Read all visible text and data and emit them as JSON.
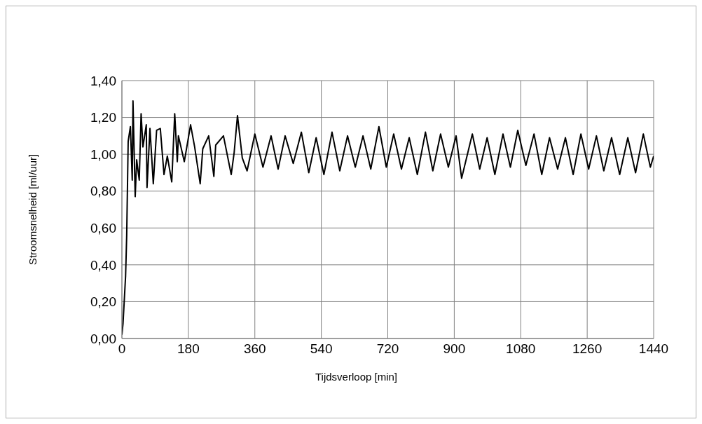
{
  "chart_data": {
    "type": "line",
    "xlabel": "Tijdsverloop [min]",
    "ylabel": "Stroomsnelheid [ml/uur]",
    "x": [
      0,
      3,
      10,
      13,
      17,
      23,
      28,
      30,
      36,
      40,
      47,
      52,
      57,
      66,
      68,
      76,
      85,
      94,
      104,
      114,
      123,
      135,
      143,
      150,
      153,
      169,
      186,
      197,
      212,
      219,
      235,
      249,
      254,
      275,
      296,
      304,
      313,
      326,
      339,
      360,
      382,
      404,
      423,
      442,
      464,
      486,
      506,
      526,
      547,
      569,
      590,
      611,
      632,
      653,
      674,
      696,
      716,
      736,
      757,
      778,
      800,
      822,
      842,
      863,
      884,
      905,
      920,
      949,
      969,
      989,
      1010,
      1032,
      1052,
      1072,
      1094,
      1116,
      1137,
      1158,
      1180,
      1201,
      1222,
      1243,
      1264,
      1285,
      1305,
      1326,
      1348,
      1370,
      1391,
      1412,
      1431,
      1440
    ],
    "series": [
      {
        "color": "#000000",
        "values": [
          0.02,
          0.08,
          0.34,
          0.56,
          1.07,
          1.15,
          0.86,
          1.29,
          0.77,
          0.97,
          0.86,
          1.22,
          1.04,
          1.16,
          0.82,
          1.14,
          0.84,
          1.13,
          1.14,
          0.89,
          0.99,
          0.85,
          1.22,
          0.96,
          1.1,
          0.96,
          1.16,
          1.04,
          0.84,
          1.03,
          1.1,
          0.88,
          1.05,
          1.1,
          0.89,
          1.01,
          1.21,
          0.98,
          0.91,
          1.11,
          0.93,
          1.1,
          0.92,
          1.1,
          0.95,
          1.12,
          0.9,
          1.09,
          0.89,
          1.12,
          0.91,
          1.1,
          0.93,
          1.1,
          0.92,
          1.15,
          0.93,
          1.11,
          0.92,
          1.09,
          0.89,
          1.12,
          0.91,
          1.11,
          0.93,
          1.1,
          0.87,
          1.11,
          0.92,
          1.09,
          0.89,
          1.11,
          0.93,
          1.13,
          0.94,
          1.11,
          0.89,
          1.09,
          0.92,
          1.09,
          0.89,
          1.11,
          0.92,
          1.1,
          0.91,
          1.09,
          0.89,
          1.09,
          0.9,
          1.11,
          0.93,
          0.99
        ]
      }
    ],
    "xlim": [
      0,
      1440
    ],
    "xticks": [
      0,
      180,
      360,
      540,
      720,
      900,
      1080,
      1260,
      1440
    ],
    "ylim": [
      0,
      1.4
    ],
    "yticks": [
      {
        "value": 0,
        "label": "0,00"
      },
      {
        "value": 0.2,
        "label": "0,20"
      },
      {
        "value": 0.4,
        "label": "0,40"
      },
      {
        "value": 0.6,
        "label": "0,60"
      },
      {
        "value": 0.8,
        "label": "0,80"
      },
      {
        "value": 1,
        "label": "1,00"
      },
      {
        "value": 1.2,
        "label": "1,20"
      },
      {
        "value": 1.4,
        "label": "1,40"
      }
    ],
    "grid": true,
    "marker": "none",
    "line_style": "solid"
  }
}
